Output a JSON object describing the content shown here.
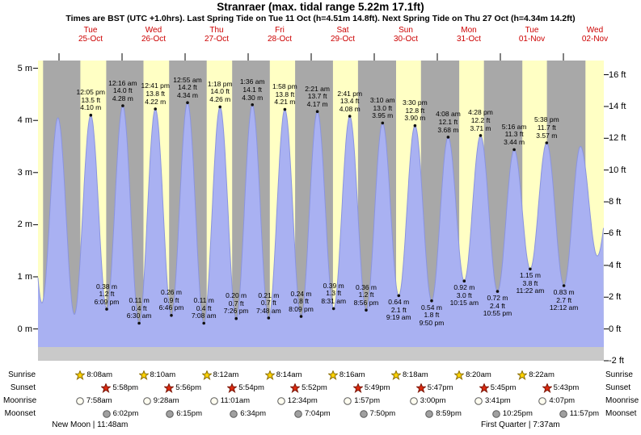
{
  "header": {
    "title": "Stranraer (max. tidal range 5.22m 17.1ft)",
    "subtitle": "Times are BST (UTC +1.0hrs). Last Spring Tide on Tue 11 Oct (h=4.51m 14.8ft). Next Spring Tide on Thu 27 Oct (h=4.34m 14.2ft)"
  },
  "chart_data": {
    "type": "area",
    "title": "Stranraer (max. tidal range 5.22m 17.1ft)",
    "y_axis_left": {
      "unit": "m",
      "ticks": [
        5,
        4,
        3,
        2,
        1,
        0
      ]
    },
    "y_axis_right": {
      "unit": "ft",
      "ticks": [
        16,
        14,
        12,
        10,
        8,
        6,
        4,
        2,
        0,
        -2
      ]
    },
    "x_axis_days": [
      {
        "weekday": "Tue",
        "date": "25-Oct"
      },
      {
        "weekday": "Wed",
        "date": "26-Oct"
      },
      {
        "weekday": "Thu",
        "date": "27-Oct"
      },
      {
        "weekday": "Fri",
        "date": "28-Oct"
      },
      {
        "weekday": "Sat",
        "date": "29-Oct"
      },
      {
        "weekday": "Sun",
        "date": "30-Oct"
      },
      {
        "weekday": "Mon",
        "date": "31-Oct"
      },
      {
        "weekday": "Tue",
        "date": "01-Nov"
      },
      {
        "weekday": "Wed",
        "date": "02-Nov"
      }
    ],
    "tide_extremes": [
      {
        "kind": "high",
        "t": 12.083,
        "height_m": 4.1,
        "lines": [
          "12:05 pm",
          "13.5 ft",
          "4.10 m"
        ]
      },
      {
        "kind": "low",
        "t": 18.15,
        "height_m": 0.38,
        "lines": [
          "0.38 m",
          "1.2 ft",
          "6:09 pm"
        ]
      },
      {
        "kind": "high",
        "t": 24.267,
        "height_m": 4.28,
        "lines": [
          "12:16 am",
          "14.0 ft",
          "4.28 m"
        ]
      },
      {
        "kind": "low",
        "t": 30.5,
        "height_m": 0.11,
        "lines": [
          "0.11 m",
          "0.4 ft",
          "6:30 am"
        ]
      },
      {
        "kind": "high",
        "t": 36.683,
        "height_m": 4.22,
        "lines": [
          "12:41 pm",
          "13.8 ft",
          "4.22 m"
        ]
      },
      {
        "kind": "low",
        "t": 42.767,
        "height_m": 0.26,
        "lines": [
          "0.26 m",
          "0.9 ft",
          "6:46 pm"
        ]
      },
      {
        "kind": "high",
        "t": 48.917,
        "height_m": 4.34,
        "lines": [
          "12:55 am",
          "14.2 ft",
          "4.34 m"
        ]
      },
      {
        "kind": "low",
        "t": 55.133,
        "height_m": 0.11,
        "lines": [
          "0.11 m",
          "0.4 ft",
          "7:08 am"
        ]
      },
      {
        "kind": "high",
        "t": 61.3,
        "height_m": 4.26,
        "lines": [
          "1:18 pm",
          "14.0 ft",
          "4.26 m"
        ]
      },
      {
        "kind": "low",
        "t": 67.433,
        "height_m": 0.2,
        "lines": [
          "0.20 m",
          "0.7 ft",
          "7:26 pm"
        ]
      },
      {
        "kind": "high",
        "t": 73.6,
        "height_m": 4.3,
        "lines": [
          "1:36 am",
          "14.1 ft",
          "4.30 m"
        ]
      },
      {
        "kind": "low",
        "t": 79.8,
        "height_m": 0.21,
        "lines": [
          "0.21 m",
          "0.7 ft",
          "7:48 am"
        ]
      },
      {
        "kind": "high",
        "t": 85.967,
        "height_m": 4.21,
        "lines": [
          "1:58 pm",
          "13.8 ft",
          "4.21 m"
        ]
      },
      {
        "kind": "low",
        "t": 92.15,
        "height_m": 0.24,
        "lines": [
          "0.24 m",
          "0.8 ft",
          "8:09 pm"
        ]
      },
      {
        "kind": "high",
        "t": 98.35,
        "height_m": 4.17,
        "lines": [
          "2:21 am",
          "13.7 ft",
          "4.17 m"
        ]
      },
      {
        "kind": "low",
        "t": 104.517,
        "height_m": 0.39,
        "lines": [
          "0.39 m",
          "1.3 ft",
          "8:31 am"
        ]
      },
      {
        "kind": "high",
        "t": 110.683,
        "height_m": 4.08,
        "lines": [
          "2:41 pm",
          "13.4 ft",
          "4.08 m"
        ]
      },
      {
        "kind": "low",
        "t": 116.933,
        "height_m": 0.36,
        "lines": [
          "0.36 m",
          "1.2 ft",
          "8:56 pm"
        ]
      },
      {
        "kind": "high",
        "t": 123.167,
        "height_m": 3.95,
        "lines": [
          "3:10 am",
          "13.0 ft",
          "3.95 m"
        ]
      },
      {
        "kind": "low",
        "t": 129.317,
        "height_m": 0.64,
        "lines": [
          "0.64 m",
          "2.1 ft",
          "9:19 am"
        ]
      },
      {
        "kind": "high",
        "t": 135.5,
        "height_m": 3.9,
        "lines": [
          "3:30 pm",
          "12.8 ft",
          "3.90 m"
        ]
      },
      {
        "kind": "low",
        "t": 141.833,
        "height_m": 0.54,
        "lines": [
          "0.54 m",
          "1.8 ft",
          "9:50 pm"
        ]
      },
      {
        "kind": "high",
        "t": 148.133,
        "height_m": 3.68,
        "lines": [
          "4:08 am",
          "12.1 ft",
          "3.68 m"
        ]
      },
      {
        "kind": "low",
        "t": 154.25,
        "height_m": 0.92,
        "lines": [
          "0.92 m",
          "3.0 ft",
          "10:15 am"
        ]
      },
      {
        "kind": "high",
        "t": 160.467,
        "height_m": 3.71,
        "lines": [
          "4:28 pm",
          "12.2 ft",
          "3.71 m"
        ]
      },
      {
        "kind": "low",
        "t": 166.917,
        "height_m": 0.72,
        "lines": [
          "0.72 m",
          "2.4 ft",
          "10:55 pm"
        ]
      },
      {
        "kind": "high",
        "t": 173.267,
        "height_m": 3.44,
        "lines": [
          "5:16 am",
          "11.3 ft",
          "3.44 m"
        ]
      },
      {
        "kind": "low",
        "t": 179.367,
        "height_m": 1.15,
        "lines": [
          "1.15 m",
          "3.8 ft",
          "11:22 am"
        ]
      },
      {
        "kind": "high",
        "t": 185.633,
        "height_m": 3.57,
        "lines": [
          "5:38 pm",
          "11.7 ft",
          "3.57 m"
        ]
      },
      {
        "kind": "low",
        "t": 192.2,
        "height_m": 0.83,
        "lines": [
          "0.83 m",
          "2.7 ft",
          "12:12 am"
        ]
      }
    ],
    "curve_padding": {
      "pre": [
        {
          "t": -12.7,
          "height_m": 4.0
        },
        {
          "t": -6.5,
          "height_m": 0.5
        },
        {
          "t": -0.4,
          "height_m": 4.05
        },
        {
          "t": 5.85,
          "height_m": 0.28
        }
      ],
      "post": [
        {
          "t": 198.5,
          "height_m": 3.5
        },
        {
          "t": 204.9,
          "height_m": 1.4
        },
        {
          "t": 211.5,
          "height_m": 3.3
        }
      ]
    },
    "daylight_padding": [
      {
        "from_hour": -8,
        "to_hour": -6.05
      },
      {
        "from_hour": 200.4,
        "to_hour": 207.39
      }
    ],
    "colors": {
      "night_bg": "#a8a8a8",
      "day_bg": "#ffffc4",
      "below_datum": "#c9c9c9",
      "tide_fill": "#a9b1f2",
      "tide_stroke": "#8a94df",
      "marker": "#101010",
      "label_red": "#cc0000",
      "sunrise_star": "#ffd400",
      "sunrise_star_stroke": "#8a6d00",
      "sunset_star": "#dc2a10",
      "sunset_star_stroke": "#7a1404",
      "moonrise_circle": "#fffdf0",
      "moonset_circle": "#a0a0a0",
      "moon_circle_stroke": "#5a5a5a"
    }
  },
  "astro": {
    "sunrise": {
      "label": "Sunrise",
      "events": [
        {
          "day": 0,
          "time": "8:08am",
          "hour": 8.133
        },
        {
          "day": 1,
          "time": "8:10am",
          "hour": 8.167
        },
        {
          "day": 2,
          "time": "8:12am",
          "hour": 8.2
        },
        {
          "day": 3,
          "time": "8:14am",
          "hour": 8.233
        },
        {
          "day": 4,
          "time": "8:16am",
          "hour": 8.267
        },
        {
          "day": 5,
          "time": "8:18am",
          "hour": 8.3
        },
        {
          "day": 6,
          "time": "8:20am",
          "hour": 8.333
        },
        {
          "day": 7,
          "time": "8:22am",
          "hour": 8.367
        }
      ]
    },
    "sunset": {
      "label": "Sunset",
      "events": [
        {
          "day": 0,
          "time": "5:58pm",
          "hour": 17.967
        },
        {
          "day": 1,
          "time": "5:56pm",
          "hour": 17.933
        },
        {
          "day": 2,
          "time": "5:54pm",
          "hour": 17.9
        },
        {
          "day": 3,
          "time": "5:52pm",
          "hour": 17.867
        },
        {
          "day": 4,
          "time": "5:49pm",
          "hour": 17.817
        },
        {
          "day": 5,
          "time": "5:47pm",
          "hour": 17.783
        },
        {
          "day": 6,
          "time": "5:45pm",
          "hour": 17.75
        },
        {
          "day": 7,
          "time": "5:43pm",
          "hour": 17.717
        }
      ]
    },
    "moonrise": {
      "label": "Moonrise",
      "events": [
        {
          "day": 0,
          "time": "7:58am",
          "hour": 7.967
        },
        {
          "day": 1,
          "time": "9:28am",
          "hour": 9.467
        },
        {
          "day": 2,
          "time": "11:01am",
          "hour": 11.017
        },
        {
          "day": 3,
          "time": "12:34pm",
          "hour": 12.567
        },
        {
          "day": 4,
          "time": "1:57pm",
          "hour": 13.95
        },
        {
          "day": 5,
          "time": "3:00pm",
          "hour": 15.0
        },
        {
          "day": 6,
          "time": "3:41pm",
          "hour": 15.683
        },
        {
          "day": 7,
          "time": "4:07pm",
          "hour": 16.117
        }
      ]
    },
    "moonset": {
      "label": "Moonset",
      "events": [
        {
          "day": 0,
          "time": "6:02pm",
          "hour": 18.033
        },
        {
          "day": 1,
          "time": "6:15pm",
          "hour": 18.25
        },
        {
          "day": 2,
          "time": "6:34pm",
          "hour": 18.567
        },
        {
          "day": 3,
          "time": "7:04pm",
          "hour": 19.067
        },
        {
          "day": 4,
          "time": "7:50pm",
          "hour": 19.833
        },
        {
          "day": 5,
          "time": "8:59pm",
          "hour": 20.983
        },
        {
          "day": 6,
          "time": "10:25pm",
          "hour": 22.417
        },
        {
          "day": 7,
          "time": "11:57pm",
          "hour": 23.95
        }
      ]
    },
    "moon_phase_notes": [
      {
        "text": "New Moon | 11:48am",
        "day": 0,
        "hour": 11.8
      },
      {
        "text": "First Quarter | 7:37am",
        "day": 7,
        "hour": 7.617
      }
    ]
  }
}
